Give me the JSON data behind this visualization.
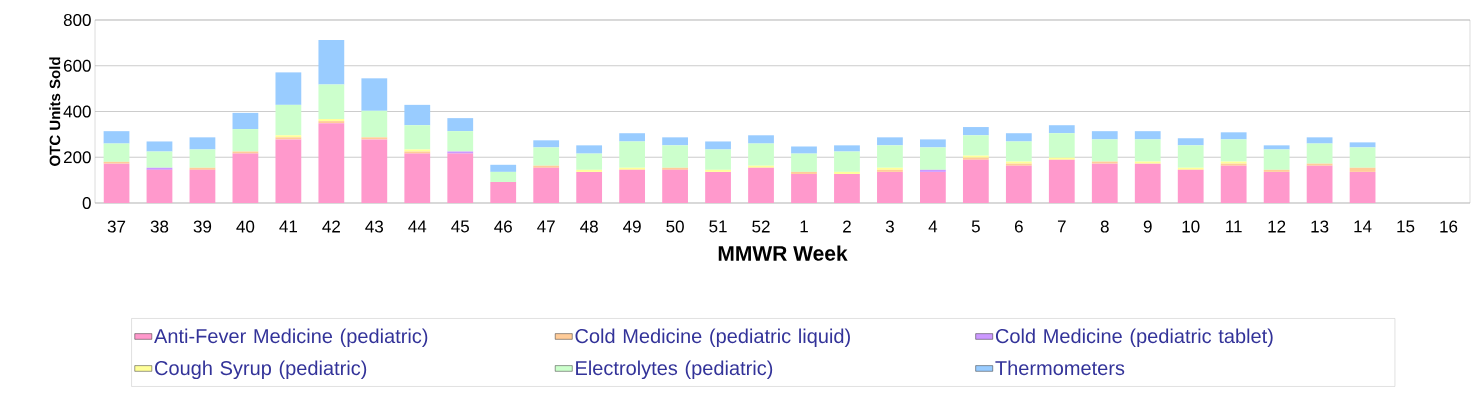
{
  "chart_data": {
    "type": "bar",
    "stacked": true,
    "xlabel": "MMWR Week",
    "ylabel": "OTC Units Sold",
    "categories": [
      "37",
      "38",
      "39",
      "40",
      "41",
      "42",
      "43",
      "44",
      "45",
      "46",
      "47",
      "48",
      "49",
      "50",
      "51",
      "52",
      "1",
      "2",
      "3",
      "4",
      "5",
      "6",
      "7",
      "8",
      "9",
      "10",
      "11",
      "12",
      "13",
      "14",
      "15",
      "16"
    ],
    "ylim": [
      0,
      800
    ],
    "yticks": [
      0,
      200,
      400,
      600,
      800
    ],
    "grid": "y",
    "legend": "bottom",
    "series": [
      {
        "name": "Anti-Fever Medicine (pediatric)",
        "color": "#ff99cc",
        "values": [
          172,
          145,
          145,
          216,
          278,
          349,
          278,
          216,
          216,
          92,
          154,
          136,
          145,
          145,
          136,
          154,
          127,
          127,
          136,
          136,
          189,
          163,
          189,
          172,
          172,
          145,
          163,
          136,
          163,
          136,
          null,
          null
        ]
      },
      {
        "name": "Cold Medicine (pediatric liquid)",
        "color": "#ffcc99",
        "values": [
          8,
          0,
          9,
          9,
          9,
          9,
          9,
          9,
          0,
          0,
          9,
          0,
          0,
          9,
          0,
          0,
          9,
          0,
          9,
          0,
          9,
          9,
          0,
          9,
          0,
          0,
          9,
          9,
          9,
          18,
          null,
          null
        ]
      },
      {
        "name": "Cold Medicine (pediatric tablet)",
        "color": "#cc99ff",
        "values": [
          0,
          9,
          0,
          0,
          0,
          0,
          0,
          0,
          9,
          0,
          0,
          0,
          0,
          0,
          0,
          0,
          0,
          0,
          0,
          9,
          0,
          0,
          0,
          0,
          0,
          0,
          0,
          0,
          0,
          0,
          null,
          null
        ]
      },
      {
        "name": "Cough Syrup (pediatric)",
        "color": "#ffff99",
        "values": [
          0,
          0,
          0,
          0,
          9,
          9,
          0,
          9,
          0,
          0,
          0,
          9,
          9,
          0,
          9,
          9,
          0,
          9,
          9,
          0,
          9,
          9,
          9,
          0,
          9,
          9,
          9,
          0,
          0,
          0,
          null,
          null
        ]
      },
      {
        "name": "Electrolytes (pediatric)",
        "color": "#ccffcc",
        "values": [
          80,
          71,
          80,
          98,
          133,
          151,
          116,
          106,
          89,
          44,
          80,
          71,
          115,
          98,
          89,
          97,
          80,
          89,
          98,
          98,
          89,
          88,
          107,
          97,
          97,
          98,
          97,
          89,
          88,
          89,
          null,
          null
        ]
      },
      {
        "name": "Thermometers",
        "color": "#99ccff",
        "values": [
          54,
          44,
          53,
          71,
          142,
          195,
          142,
          89,
          57,
          31,
          31,
          36,
          36,
          35,
          35,
          36,
          31,
          27,
          35,
          35,
          36,
          36,
          35,
          36,
          36,
          31,
          31,
          18,
          27,
          22,
          null,
          null
        ]
      }
    ]
  }
}
